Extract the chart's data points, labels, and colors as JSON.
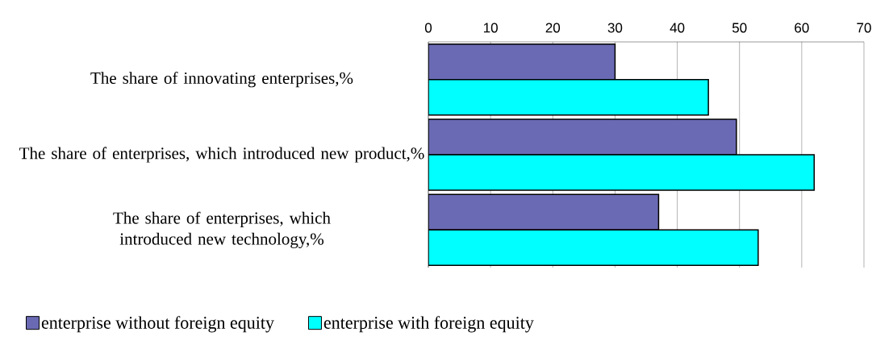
{
  "chart_data": {
    "type": "bar",
    "orientation": "horizontal",
    "categories": [
      "The share of innovating enterprises,%",
      "The share of enterprises, which introduced new product,%",
      "The share of enterprises, which introduced new technology,%"
    ],
    "series": [
      {
        "name": "enterprise without foreign equity",
        "color": "#6a6ab4",
        "values": [
          30,
          49.5,
          37
        ]
      },
      {
        "name": "enterprise with foreign equity",
        "color": "#00ffff",
        "values": [
          45,
          62,
          53
        ]
      }
    ],
    "xlim": [
      0,
      70
    ],
    "xticks": [
      0,
      10,
      20,
      30,
      40,
      50,
      60,
      70
    ],
    "grid": "x",
    "legend": "bottom"
  }
}
